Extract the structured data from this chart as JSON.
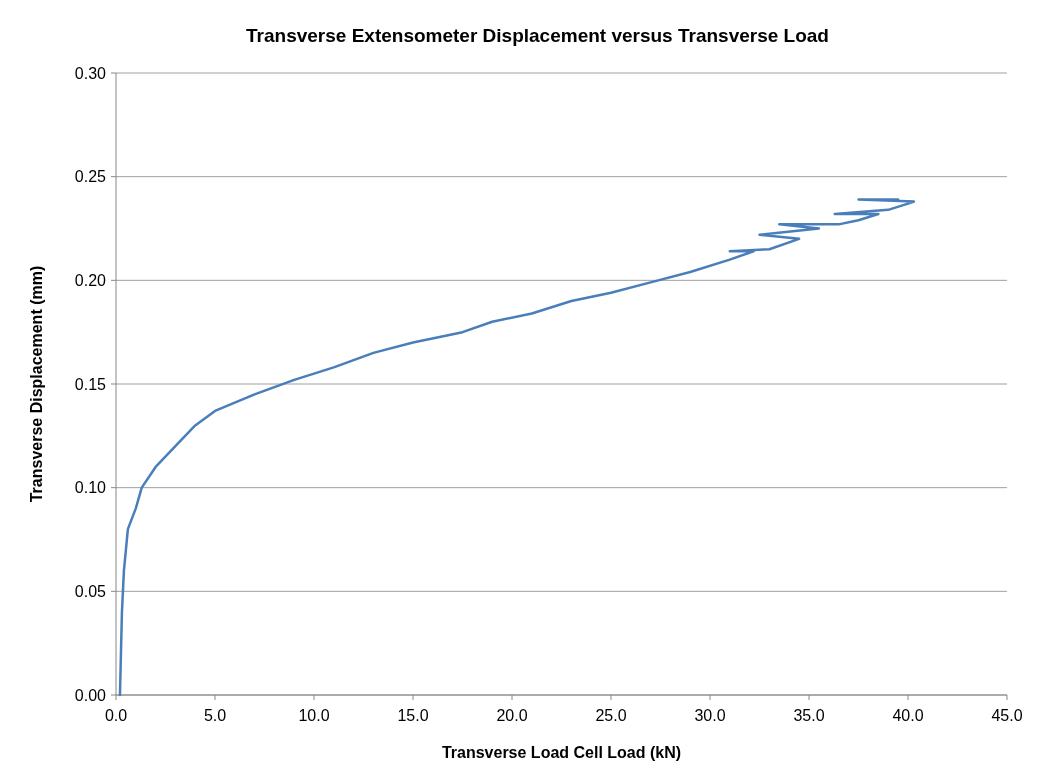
{
  "chart_data": {
    "type": "line",
    "title": "Transverse Extensometer Displacement versus Transverse Load",
    "xlabel": "Transverse Load Cell Load (kN)",
    "ylabel": "Transverse Displacement (mm)",
    "xlim": [
      0,
      45
    ],
    "ylim": [
      0,
      0.3
    ],
    "xticks": [
      {
        "value": 0,
        "label": "0.0"
      },
      {
        "value": 5,
        "label": "5.0"
      },
      {
        "value": 10,
        "label": "10.0"
      },
      {
        "value": 15,
        "label": "15.0"
      },
      {
        "value": 20,
        "label": "20.0"
      },
      {
        "value": 25,
        "label": "25.0"
      },
      {
        "value": 30,
        "label": "30.0"
      },
      {
        "value": 35,
        "label": "35.0"
      },
      {
        "value": 40,
        "label": "40.0"
      },
      {
        "value": 45,
        "label": "45.0"
      }
    ],
    "yticks": [
      {
        "value": 0,
        "label": "0.00"
      },
      {
        "value": 0.05,
        "label": "0.05"
      },
      {
        "value": 0.1,
        "label": "0.10"
      },
      {
        "value": 0.15,
        "label": "0.15"
      },
      {
        "value": 0.2,
        "label": "0.20"
      },
      {
        "value": 0.25,
        "label": "0.25"
      },
      {
        "value": 0.3,
        "label": "0.30"
      }
    ],
    "grid": "y",
    "marker": "none",
    "line_style": "solid",
    "series": [
      {
        "color": "#4a7ebb",
        "x": [
          0.2,
          0.25,
          0.3,
          0.4,
          0.6,
          1.0,
          1.3,
          2.0,
          3.0,
          4.0,
          5.0,
          7.0,
          9.0,
          11.0,
          13.0,
          15.0,
          17.5,
          19.0,
          21.0,
          23.0,
          25.0,
          27.0,
          29.0,
          31.0,
          32.2,
          31.0,
          33.0,
          34.5,
          32.5,
          35.5,
          33.5,
          36.5,
          37.5,
          38.5,
          36.3,
          39.0,
          40.0,
          40.3,
          37.5,
          39.5
        ],
        "values": [
          0.0,
          0.02,
          0.04,
          0.06,
          0.08,
          0.09,
          0.1,
          0.11,
          0.12,
          0.13,
          0.137,
          0.145,
          0.152,
          0.158,
          0.165,
          0.17,
          0.175,
          0.18,
          0.184,
          0.19,
          0.194,
          0.199,
          0.204,
          0.21,
          0.214,
          0.214,
          0.215,
          0.22,
          0.222,
          0.225,
          0.227,
          0.227,
          0.229,
          0.232,
          0.232,
          0.234,
          0.237,
          0.238,
          0.239,
          0.239
        ]
      }
    ]
  }
}
